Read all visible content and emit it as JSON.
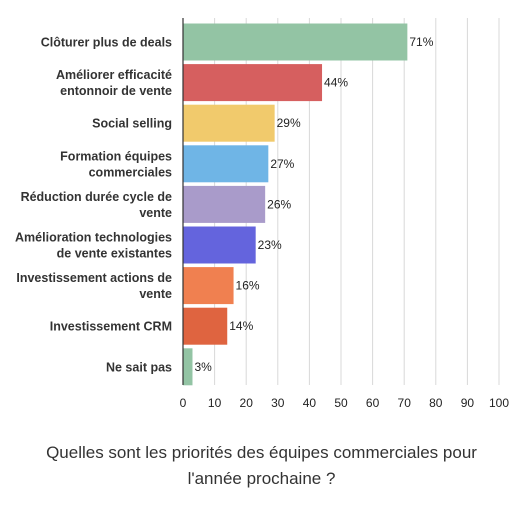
{
  "chart_data": {
    "type": "bar",
    "orientation": "horizontal",
    "title_lines": [
      "Quelles sont les priorités des équipes commerciales pour",
      "l'année prochaine ?"
    ],
    "categories": [
      [
        "Clôturer plus de deals"
      ],
      [
        "Améliorer efficacité",
        "entonnoir de vente"
      ],
      [
        "Social selling"
      ],
      [
        "Formation équipes",
        "commerciales"
      ],
      [
        "Réduction durée cycle de",
        "vente"
      ],
      [
        "Amélioration technologies",
        "de vente existantes"
      ],
      [
        "Investissement actions de",
        "vente"
      ],
      [
        "Investissement CRM"
      ],
      [
        "Ne sait pas"
      ]
    ],
    "values": [
      71,
      44,
      29,
      27,
      26,
      23,
      16,
      14,
      3
    ],
    "value_labels": [
      "71%",
      "44%",
      "29%",
      "27%",
      "26%",
      "23%",
      "16%",
      "14%",
      "3%"
    ],
    "colors": [
      "#93c4a4",
      "#d65f5f",
      "#f1ca6c",
      "#6fb5e6",
      "#a99bca",
      "#6464dd",
      "#f08050",
      "#df6440",
      "#93c4a4"
    ],
    "xlim": [
      0,
      100
    ],
    "xticks": [
      0,
      10,
      20,
      30,
      40,
      50,
      60,
      70,
      80,
      90,
      100
    ],
    "grid": true,
    "legend": "none",
    "xlabel": "",
    "ylabel": ""
  }
}
